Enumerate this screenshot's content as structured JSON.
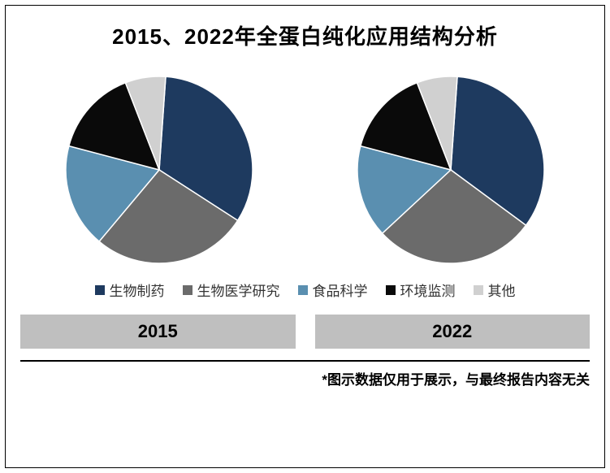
{
  "title": {
    "text": "2015、2022年全蛋白纯化应用结构分析",
    "fontsize": 26
  },
  "background_color": "#ffffff",
  "frame_border_color": "#000000",
  "categories": [
    {
      "label": "生物制药",
      "color": "#1e3a5f"
    },
    {
      "label": "生物医学研究",
      "color": "#6b6b6b"
    },
    {
      "label": "食品科学",
      "color": "#5a8fb0"
    },
    {
      "label": "环境监测",
      "color": "#0a0a0a"
    },
    {
      "label": "其他",
      "color": "#d0d0d0"
    }
  ],
  "legend": {
    "fontsize": 17
  },
  "pies": [
    {
      "year": "2015",
      "values": [
        33,
        27,
        18,
        15,
        7
      ],
      "radius": 115,
      "start_angle_deg": -86,
      "direction": "cw"
    },
    {
      "year": "2022",
      "values": [
        34,
        28,
        16,
        15,
        7
      ],
      "radius": 115,
      "start_angle_deg": -86,
      "direction": "cw"
    }
  ],
  "year_box": {
    "background": "#bfbfbf",
    "fontsize": 22
  },
  "rule_color": "#000000",
  "footnote": {
    "text": "*图示数据仅用于展示，与最终报告内容无关",
    "fontsize": 17
  }
}
